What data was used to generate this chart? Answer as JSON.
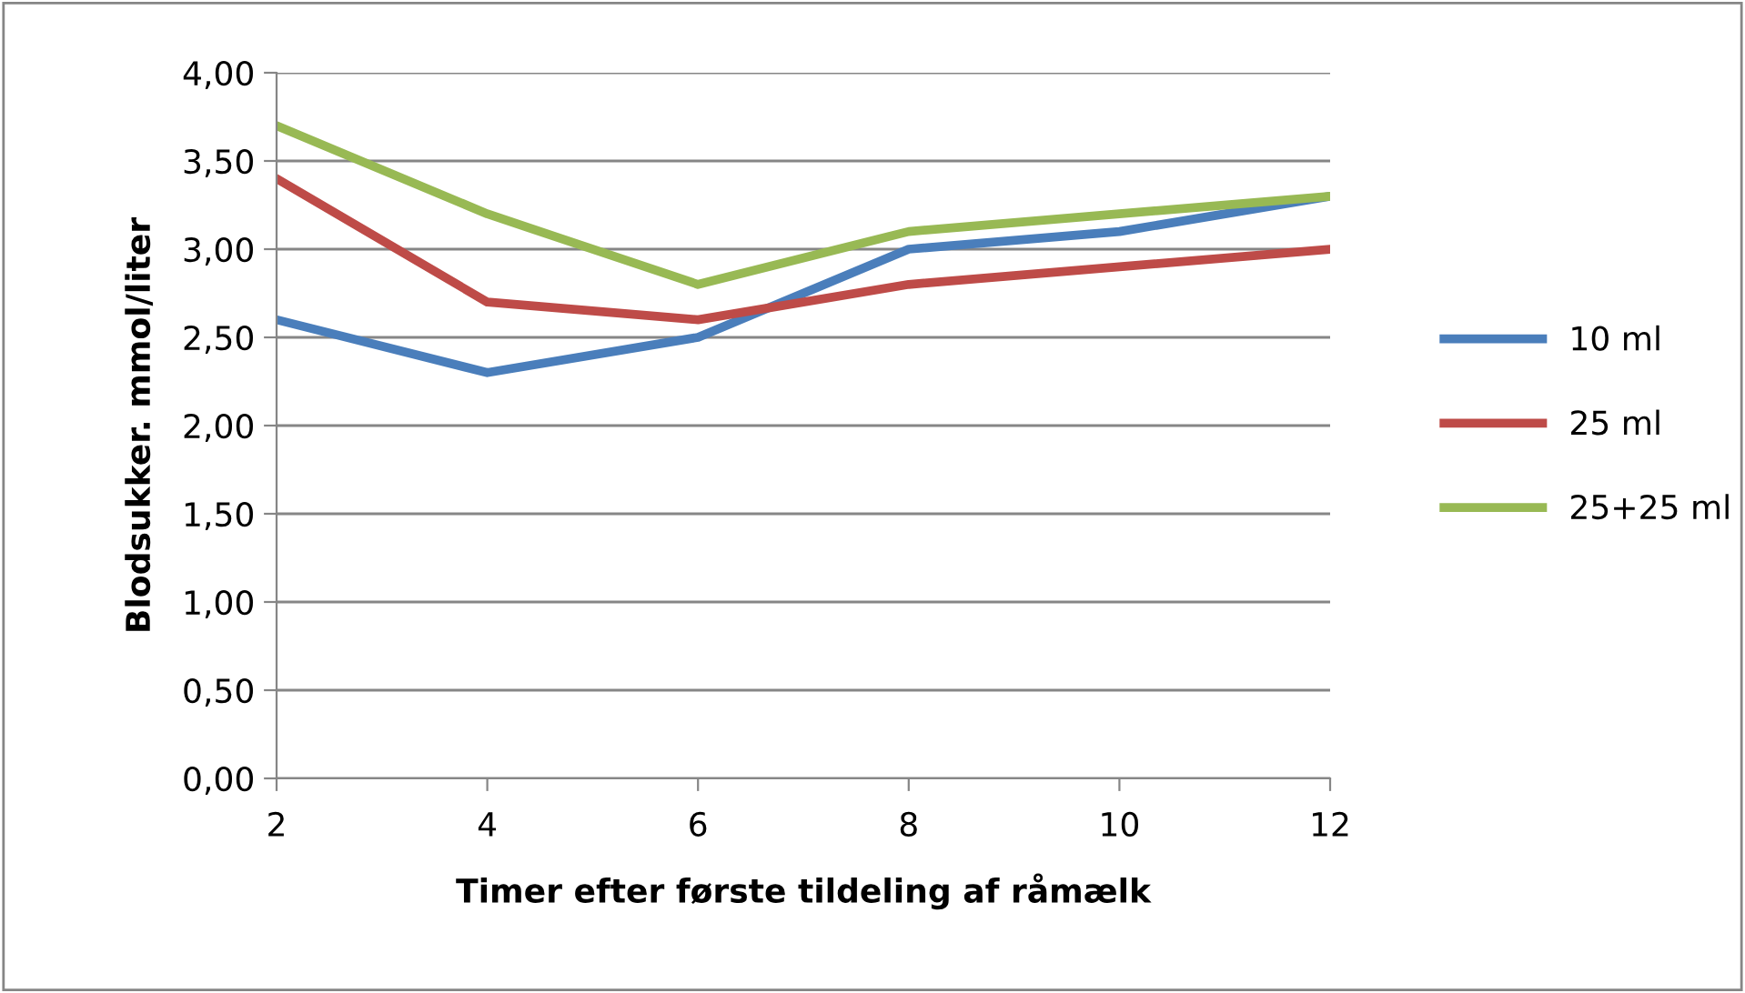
{
  "chart_data": {
    "type": "line",
    "xlabel": "Timer efter første tildeling af råmælk",
    "ylabel": "Blodsukker. mmol/liter",
    "categories": [
      "2",
      "4",
      "6",
      "8",
      "10",
      "12"
    ],
    "series": [
      {
        "name": "10 ml",
        "color": "#4a7ebb",
        "values": [
          2.6,
          2.3,
          2.5,
          3.0,
          3.1,
          3.3
        ]
      },
      {
        "name": "25 ml",
        "color": "#be4b48",
        "values": [
          3.4,
          2.7,
          2.6,
          2.8,
          2.9,
          3.0
        ]
      },
      {
        "name": "25+25 ml",
        "color": "#98b954",
        "values": [
          3.7,
          3.2,
          2.8,
          3.1,
          3.2,
          3.3
        ]
      }
    ],
    "ylim": [
      0,
      4
    ],
    "yticks": [
      {
        "value": 0,
        "label": "0,00"
      },
      {
        "value": 0.5,
        "label": "0,50"
      },
      {
        "value": 1,
        "label": "1,00"
      },
      {
        "value": 1.5,
        "label": "1,50"
      },
      {
        "value": 2,
        "label": "2,00"
      },
      {
        "value": 2.5,
        "label": "2,50"
      },
      {
        "value": 3,
        "label": "3,00"
      },
      {
        "value": 3.5,
        "label": "3,50"
      },
      {
        "value": 4,
        "label": "4,00"
      }
    ],
    "grid": "y",
    "legend": "right",
    "marker": "none",
    "line_style": "solid"
  }
}
